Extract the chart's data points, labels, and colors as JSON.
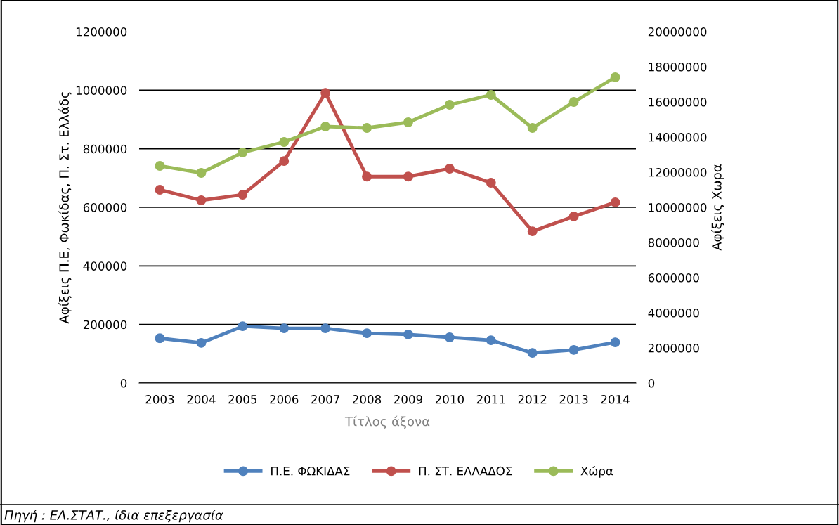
{
  "chart_data": {
    "type": "line",
    "categories": [
      "2003",
      "2004",
      "2005",
      "2006",
      "2007",
      "2008",
      "2009",
      "2010",
      "2011",
      "2012",
      "2013",
      "2014"
    ],
    "series": [
      {
        "name": "Π.Ε. ΦΩΚΙΔΑΣ",
        "color": "#4f81bd",
        "values": [
          153000,
          137000,
          194000,
          187000,
          187000,
          170000,
          166000,
          156000,
          146000,
          103000,
          113000,
          139000
        ]
      },
      {
        "name": "Π. ΣΤ. ΕΛΛΑΔΟΣ",
        "color": "#c0504d",
        "values": [
          660000,
          624000,
          643000,
          758000,
          991000,
          705000,
          705000,
          732000,
          684000,
          518000,
          569000,
          617000
        ]
      },
      {
        "name": "Χώρα",
        "color": "#9bbb59",
        "axis": "y2",
        "values": [
          12360000,
          11960000,
          13120000,
          13720000,
          14600000,
          14520000,
          14840000,
          15840000,
          16400000,
          14520000,
          16000000,
          17400000
        ]
      }
    ],
    "xlabel": "Τίτλος άξονα",
    "ylabel": "Αφίξεις Π.Ε, Φωκίδας, Π. Στ. Ελλάδς",
    "y2label": "Αφίξεις Χωρα",
    "ylim": [
      0,
      1200000
    ],
    "yticks": [
      0,
      200000,
      400000,
      600000,
      800000,
      1000000,
      1200000
    ],
    "y2lim": [
      0,
      20000000
    ],
    "y2ticks": [
      0,
      2000000,
      4000000,
      6000000,
      8000000,
      10000000,
      12000000,
      14000000,
      16000000,
      18000000,
      20000000
    ],
    "grid": "y",
    "legend": "bottom",
    "marker": "circle",
    "line_style": "solid",
    "annotations": [
      "Πηγή : ΕΛ.ΣΤΑΤ., ίδια επεξεργασία"
    ]
  }
}
